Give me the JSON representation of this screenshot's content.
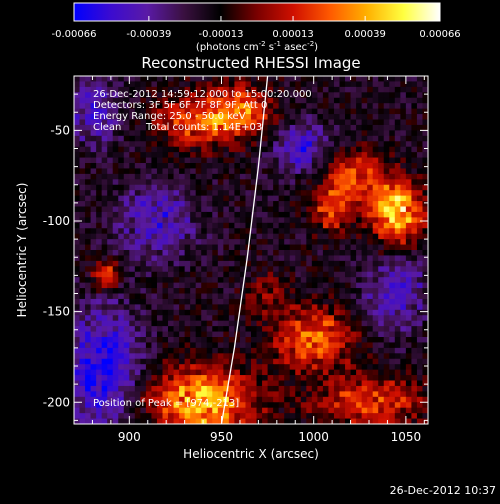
{
  "chart_data": {
    "type": "heatmap",
    "title": "Reconstructed RHESSI Image",
    "xlabel": "Heliocentric X (arcsec)",
    "ylabel": "Heliocentric Y (arcsec)",
    "xlim": [
      870,
      1062
    ],
    "ylim": [
      -212,
      -20
    ],
    "x_ticks": [
      900,
      950,
      1000,
      1050
    ],
    "y_ticks": [
      -50,
      -100,
      -150,
      -200
    ],
    "colorbar": {
      "range": [
        -0.00066,
        0.00066
      ],
      "tick_values": [
        -0.00066,
        -0.00039,
        -0.00013,
        0.00013,
        0.00039,
        0.00066
      ],
      "tick_labels": [
        "-0.00066",
        "-0.00039",
        "-0.00013",
        "0.00013",
        "0.00039",
        "0.00066"
      ],
      "units_prefix": "(photons cm",
      "units_exp1": "-2",
      "units_mid": " s",
      "units_exp2": "-1",
      "units_mid2": " asec",
      "units_exp3": "-2",
      "units_suffix": ")",
      "colors": [
        "#0000ff",
        "#3b0bd0",
        "#5a1aa6",
        "#3a1040",
        "#000000",
        "#7a0000",
        "#d01000",
        "#ff5a00",
        "#ffb000",
        "#ffff40",
        "#ffffff"
      ]
    },
    "annotations": {
      "time_range": "26-Dec-2012 14:59:12.000 to 15:00:20.000",
      "detectors": "Detectors: 3F 5F 6F 7F 8F 9F, Att 0",
      "energy": "Energy Range: 25.0 - 50.0 keV",
      "method": "Clean",
      "total_counts": "Total counts: 1.14E+03",
      "peak": "Position of Peak = [974,-213]"
    },
    "limb_arc": [
      [
        975,
        -20
      ],
      [
        970,
        -70
      ],
      [
        964,
        -120
      ],
      [
        957,
        -170
      ],
      [
        950,
        -212
      ]
    ],
    "bright_sources": [
      {
        "x": 935,
        "y": -45,
        "amp": 0.0004,
        "sx": 14,
        "sy": 10
      },
      {
        "x": 960,
        "y": -40,
        "amp": 0.00045,
        "sx": 12,
        "sy": 10
      },
      {
        "x": 1045,
        "y": -95,
        "amp": 0.00066,
        "sx": 10,
        "sy": 12
      },
      {
        "x": 1020,
        "y": -75,
        "amp": 0.0004,
        "sx": 12,
        "sy": 10
      },
      {
        "x": 1010,
        "y": -95,
        "amp": 0.00035,
        "sx": 8,
        "sy": 8
      },
      {
        "x": 888,
        "y": -130,
        "amp": 0.00045,
        "sx": 5,
        "sy": 5
      },
      {
        "x": 940,
        "y": -200,
        "amp": 0.0006,
        "sx": 20,
        "sy": 14
      },
      {
        "x": 1000,
        "y": -165,
        "amp": 0.00045,
        "sx": 15,
        "sy": 12
      },
      {
        "x": 1030,
        "y": -200,
        "amp": 0.0004,
        "sx": 20,
        "sy": 10
      },
      {
        "x": 975,
        "y": -140,
        "amp": 0.0002,
        "sx": 8,
        "sy": 8
      }
    ],
    "negative_regions": [
      {
        "x": 885,
        "y": -180,
        "amp": -0.00045,
        "sx": 14,
        "sy": 22
      },
      {
        "x": 915,
        "y": -100,
        "amp": -0.0003,
        "sx": 14,
        "sy": 14
      },
      {
        "x": 995,
        "y": -60,
        "amp": -0.0003,
        "sx": 12,
        "sy": 10
      },
      {
        "x": 1045,
        "y": -140,
        "amp": -0.0003,
        "sx": 12,
        "sy": 14
      },
      {
        "x": 880,
        "y": -40,
        "amp": -0.0003,
        "sx": 10,
        "sy": 12
      }
    ]
  },
  "footer": {
    "timestamp": "26-Dec-2012 10:37"
  }
}
